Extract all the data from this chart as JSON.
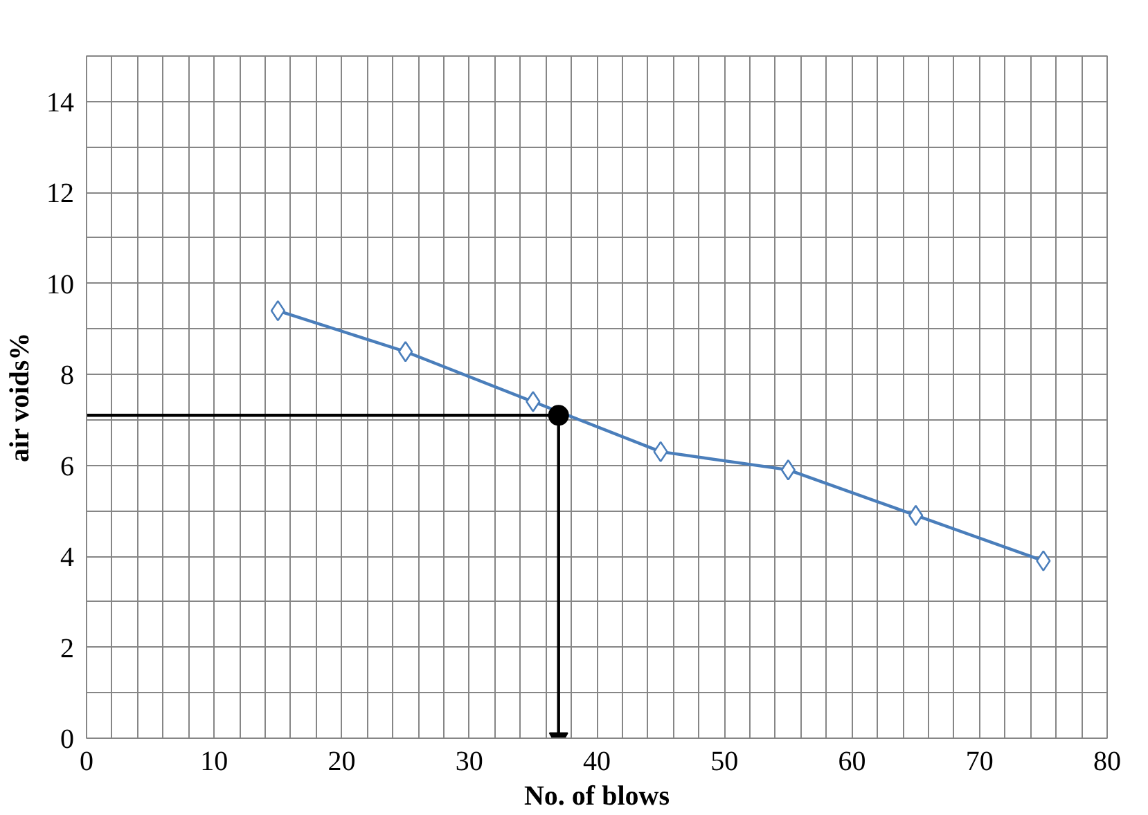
{
  "chart_data": {
    "type": "line",
    "xlabel": "No. of blows",
    "ylabel": "air voids%",
    "xlim": [
      0,
      80
    ],
    "xticks": [
      0,
      10,
      20,
      30,
      40,
      50,
      60,
      70,
      80
    ],
    "ylim": [
      0,
      15
    ],
    "yticks": [
      0,
      2,
      4,
      6,
      8,
      10,
      12,
      14
    ],
    "grid": true,
    "series": [
      {
        "color": "#4a7ebb",
        "marker": "diamond",
        "x": [
          15,
          25,
          35,
          45,
          55,
          65,
          75
        ],
        "values": [
          9.4,
          8.5,
          7.4,
          6.3,
          5.9,
          4.9,
          3.9
        ]
      },
      {
        "type": "line",
        "color": "#000000",
        "marker": "none",
        "x": [
          0,
          37
        ],
        "values": [
          7.1,
          7.1
        ]
      },
      {
        "type": "line",
        "color": "#000000",
        "marker": "triangle",
        "x": [
          37,
          37
        ],
        "values": [
          7.1,
          0
        ]
      },
      {
        "type": "scatter",
        "color": "#000000",
        "marker": "circle",
        "x": [
          37
        ],
        "values": [
          7.1
        ]
      }
    ]
  }
}
